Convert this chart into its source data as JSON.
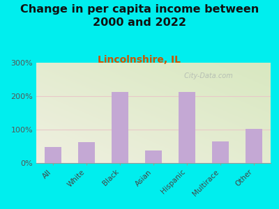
{
  "title": "Change in per capita income between\n2000 and 2022",
  "subtitle": "Lincolnshire, IL",
  "categories": [
    "All",
    "White",
    "Black",
    "Asian",
    "Hispanic",
    "Multirace",
    "Other"
  ],
  "values": [
    48,
    63,
    213,
    38,
    213,
    65,
    103
  ],
  "bar_color": "#c4a8d4",
  "title_fontsize": 11.5,
  "subtitle_fontsize": 10,
  "subtitle_color": "#cc5500",
  "background_outer": "#00eeee",
  "ylim": [
    0,
    300
  ],
  "yticks": [
    0,
    100,
    200,
    300
  ],
  "ytick_labels": [
    "0%",
    "100%",
    "200%",
    "300%"
  ],
  "watermark": " City-Data.com",
  "watermark_color": "#b0b8b0"
}
